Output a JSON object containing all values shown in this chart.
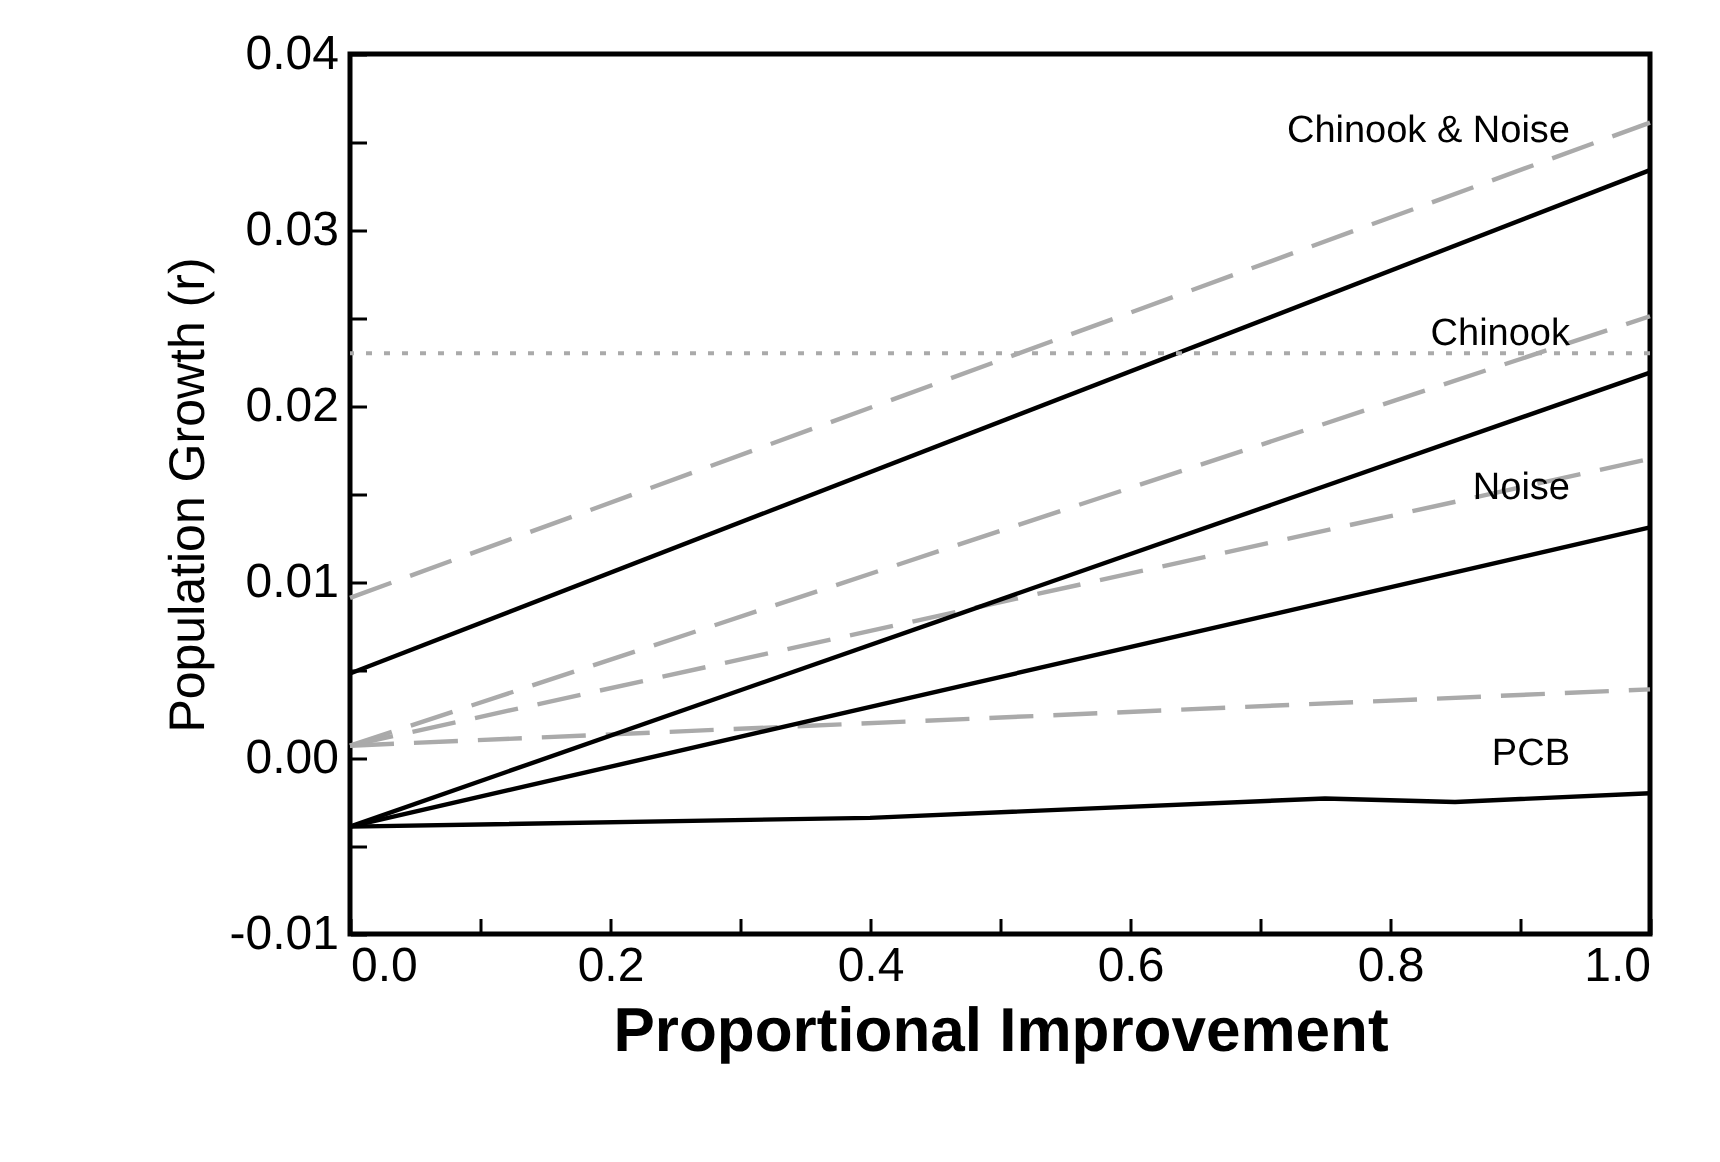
{
  "chart_data": {
    "type": "line",
    "xlabel": "Proportional Improvement",
    "ylabel": "Population Growth (r)",
    "xlim": [
      0,
      1
    ],
    "ylim": [
      -0.01,
      0.04
    ],
    "xticks": [
      {
        "value": 0,
        "label": "0.0"
      },
      {
        "value": 0.1,
        "label": null
      },
      {
        "value": 0.2,
        "label": "0.2"
      },
      {
        "value": 0.3,
        "label": null
      },
      {
        "value": 0.4,
        "label": "0.4"
      },
      {
        "value": 0.5,
        "label": null
      },
      {
        "value": 0.6,
        "label": "0.6"
      },
      {
        "value": 0.7,
        "label": null
      },
      {
        "value": 0.8,
        "label": "0.8"
      },
      {
        "value": 0.9,
        "label": null
      },
      {
        "value": 1,
        "label": "1.0"
      }
    ],
    "yticks": [
      {
        "value": -0.01,
        "label": "-0.01"
      },
      {
        "value": -0.005,
        "label": null
      },
      {
        "value": 0,
        "label": "0.00"
      },
      {
        "value": 0.005,
        "label": null
      },
      {
        "value": 0.01,
        "label": "0.01"
      },
      {
        "value": 0.015,
        "label": null
      },
      {
        "value": 0.02,
        "label": "0.02"
      },
      {
        "value": 0.025,
        "label": null
      },
      {
        "value": 0.03,
        "label": "0.03"
      },
      {
        "value": 0.035,
        "label": null
      },
      {
        "value": 0.04,
        "label": "0.04"
      }
    ],
    "grid": false,
    "marker": "none",
    "ref_lines": [
      {
        "axis": "y",
        "value": 0.023,
        "color": "#aaaaaa",
        "line_style": "dotted"
      }
    ],
    "series": [
      {
        "color": "#aaaaaa",
        "line_style": "dashed",
        "x": [
          0,
          1
        ],
        "values": [
          0.0091,
          0.0361
        ]
      },
      {
        "color": "#aaaaaa",
        "line_style": "dashed",
        "x": [
          0,
          1
        ],
        "values": [
          0.0007,
          0.0251
        ]
      },
      {
        "color": "#aaaaaa",
        "line_style": "dashed",
        "x": [
          0,
          1
        ],
        "values": [
          0.0007,
          0.017
        ]
      },
      {
        "color": "#aaaaaa",
        "line_style": "dashed",
        "x": [
          0,
          1
        ],
        "values": [
          0.0007,
          0.0039
        ]
      },
      {
        "name": "Chinook & Noise",
        "color": "#000000",
        "line_style": "solid",
        "x": [
          0,
          1
        ],
        "values": [
          0.0048,
          0.0334
        ]
      },
      {
        "name": "Chinook",
        "color": "#000000",
        "line_style": "solid",
        "x": [
          0,
          1
        ],
        "values": [
          -0.0039,
          0.0219
        ]
      },
      {
        "name": "Noise",
        "color": "#000000",
        "line_style": "solid",
        "x": [
          0,
          1
        ],
        "values": [
          -0.0039,
          0.0131
        ]
      },
      {
        "name": "PCB",
        "color": "#000000",
        "line_style": "solid",
        "x": [
          0,
          0.4,
          0.75,
          0.85,
          1
        ],
        "values": [
          -0.0039,
          -0.0034,
          -0.0023,
          -0.0025,
          -0.002
        ]
      }
    ]
  }
}
